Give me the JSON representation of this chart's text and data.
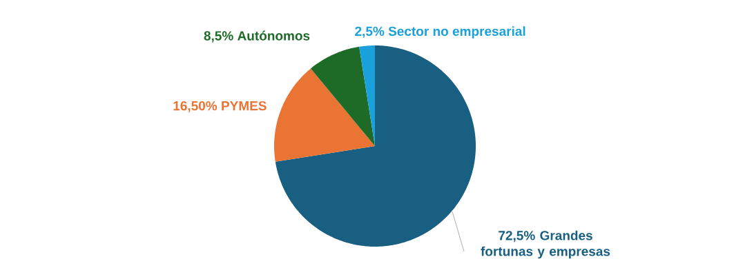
{
  "chart_data": {
    "type": "pie",
    "categories": [
      "Grandes fortunas y empresas",
      "PYMES",
      "Autónomos",
      "Sector no empresarial"
    ],
    "values": [
      72.5,
      16.5,
      8.5,
      2.5
    ],
    "value_labels": [
      "72,5%",
      "16,50%",
      "8,5%",
      "2,5%"
    ],
    "colors": [
      "#185f82",
      "#e97434",
      "#1d6b27",
      "#1aa0da"
    ]
  }
}
